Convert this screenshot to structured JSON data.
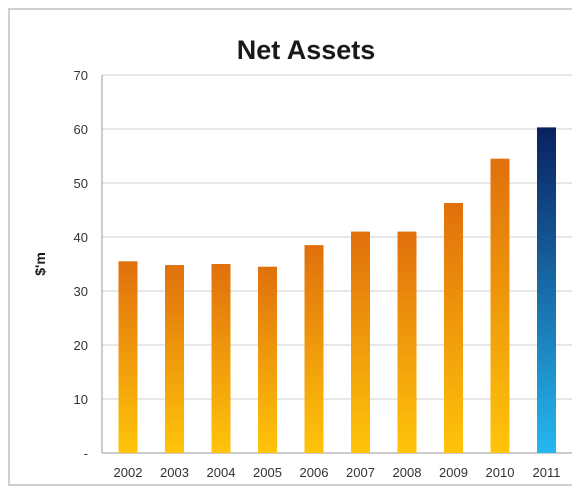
{
  "chart_data": {
    "type": "bar",
    "title": "Net Assets",
    "ylabel": "$'m",
    "xlabel": "",
    "categories": [
      "2002",
      "2003",
      "2004",
      "2005",
      "2006",
      "2007",
      "2008",
      "2009",
      "2010",
      "2011"
    ],
    "values": [
      35.5,
      34.8,
      35.0,
      34.5,
      38.5,
      41.0,
      41.0,
      46.3,
      54.5,
      60.3
    ],
    "ylim": [
      0,
      70
    ],
    "yticks": [
      "-",
      "10",
      "20",
      "30",
      "40",
      "50",
      "60",
      "70"
    ],
    "grid": true,
    "legend": "none",
    "colors": {
      "bar_top": "#e0700c",
      "bar_bottom": "#ffc40a",
      "highlight_top": "#0a2060",
      "highlight_bottom": "#25b8f0",
      "highlight_category": "2011"
    }
  }
}
